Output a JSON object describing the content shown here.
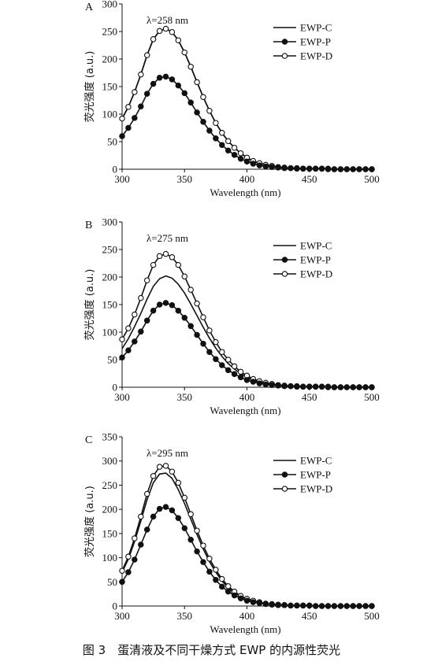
{
  "caption": "图 3　蛋清液及不同干燥方式 EWP 的内源性荧光",
  "chart_data": [
    {
      "type": "line",
      "panel_label": "A",
      "annotation": "λ=258 nm",
      "xlabel": "Wavelength (nm)",
      "ylabel": "荧光强度 (a.u.)",
      "xlim": [
        300,
        500
      ],
      "ylim": [
        0,
        300
      ],
      "xticks": [
        300,
        350,
        400,
        450,
        500
      ],
      "yticks": [
        0,
        50,
        100,
        150,
        200,
        250,
        300
      ],
      "grid": false,
      "legend_position": "top-right",
      "x": [
        300,
        305,
        310,
        315,
        320,
        325,
        330,
        335,
        340,
        345,
        350,
        355,
        360,
        365,
        370,
        375,
        380,
        385,
        390,
        395,
        400,
        405,
        410,
        415,
        420,
        425,
        430,
        435,
        440,
        445,
        450,
        455,
        460,
        465,
        470,
        475,
        480,
        485,
        490,
        495,
        500
      ],
      "series": [
        {
          "name": "EWP-C",
          "marker": "none",
          "values": [
            92,
            113,
            140,
            172,
            207,
            236,
            251,
            255,
            249,
            234,
            212,
            186,
            158,
            131,
            106,
            84,
            66,
            51,
            39,
            29,
            21,
            15,
            11,
            8,
            6,
            4,
            3,
            2,
            2,
            1,
            1,
            1,
            1,
            1,
            0,
            0,
            0,
            0,
            0,
            0,
            0
          ]
        },
        {
          "name": "EWP-P",
          "marker": "filled-circle",
          "values": [
            60,
            75,
            93,
            114,
            137,
            155,
            166,
            168,
            163,
            152,
            138,
            121,
            103,
            86,
            70,
            56,
            44,
            34,
            26,
            19,
            14,
            10,
            7,
            5,
            4,
            3,
            2,
            2,
            1,
            1,
            1,
            1,
            1,
            0,
            0,
            0,
            0,
            0,
            0,
            0,
            0
          ]
        },
        {
          "name": "EWP-D",
          "marker": "open-circle",
          "values": [
            92,
            113,
            140,
            172,
            207,
            236,
            251,
            255,
            249,
            234,
            212,
            186,
            158,
            131,
            106,
            84,
            66,
            51,
            39,
            29,
            21,
            15,
            11,
            8,
            6,
            4,
            3,
            2,
            2,
            1,
            1,
            1,
            1,
            1,
            0,
            0,
            0,
            0,
            0,
            0,
            0
          ]
        }
      ]
    },
    {
      "type": "line",
      "panel_label": "B",
      "annotation": "λ=275 nm",
      "xlabel": "Wavelength (nm)",
      "ylabel": "荧光强度 (a.u.)",
      "xlim": [
        300,
        500
      ],
      "ylim": [
        0,
        300
      ],
      "xticks": [
        300,
        350,
        400,
        450,
        500
      ],
      "yticks": [
        0,
        50,
        100,
        150,
        200,
        250,
        300
      ],
      "grid": false,
      "legend_position": "top-right",
      "x": [
        300,
        305,
        310,
        315,
        320,
        325,
        330,
        335,
        340,
        345,
        350,
        355,
        360,
        365,
        370,
        375,
        380,
        385,
        390,
        395,
        400,
        405,
        410,
        415,
        420,
        425,
        430,
        435,
        440,
        445,
        450,
        455,
        460,
        465,
        470,
        475,
        480,
        485,
        490,
        495,
        500
      ],
      "series": [
        {
          "name": "EWP-C",
          "marker": "none",
          "values": [
            70,
            88,
            110,
            134,
            160,
            183,
            197,
            202,
            198,
            187,
            171,
            151,
            130,
            109,
            89,
            71,
            56,
            43,
            33,
            25,
            18,
            13,
            9,
            7,
            5,
            4,
            3,
            2,
            2,
            1,
            1,
            1,
            1,
            1,
            0,
            0,
            0,
            0,
            0,
            0,
            0
          ]
        },
        {
          "name": "EWP-P",
          "marker": "filled-circle",
          "values": [
            54,
            67,
            83,
            101,
            121,
            139,
            150,
            153,
            149,
            139,
            126,
            111,
            95,
            79,
            64,
            51,
            40,
            31,
            24,
            18,
            13,
            10,
            7,
            5,
            4,
            3,
            2,
            2,
            1,
            1,
            1,
            1,
            1,
            0,
            0,
            0,
            0,
            0,
            0,
            0,
            0
          ]
        },
        {
          "name": "EWP-D",
          "marker": "open-circle",
          "values": [
            87,
            107,
            132,
            162,
            194,
            222,
            238,
            242,
            236,
            222,
            201,
            177,
            152,
            127,
            103,
            82,
            64,
            50,
            38,
            28,
            21,
            15,
            11,
            8,
            6,
            4,
            3,
            2,
            2,
            1,
            1,
            1,
            1,
            1,
            0,
            0,
            0,
            0,
            0,
            0,
            0
          ]
        }
      ]
    },
    {
      "type": "line",
      "panel_label": "C",
      "annotation": "λ=295 nm",
      "xlabel": "Wavelength (nm)",
      "ylabel": "荧光强度 (a.u.)",
      "xlim": [
        300,
        500
      ],
      "ylim": [
        0,
        350
      ],
      "xticks": [
        300,
        350,
        400,
        450,
        500
      ],
      "yticks": [
        0,
        50,
        100,
        150,
        200,
        250,
        300,
        350
      ],
      "grid": false,
      "legend_position": "top-right",
      "x": [
        300,
        305,
        310,
        315,
        320,
        325,
        330,
        335,
        340,
        345,
        350,
        355,
        360,
        365,
        370,
        375,
        380,
        385,
        390,
        395,
        400,
        405,
        410,
        415,
        420,
        425,
        430,
        435,
        440,
        445,
        450,
        455,
        460,
        465,
        470,
        475,
        480,
        485,
        490,
        495,
        500
      ],
      "series": [
        {
          "name": "EWP-C",
          "marker": "none",
          "values": [
            70,
            97,
            133,
            176,
            220,
            255,
            273,
            275,
            264,
            241,
            212,
            180,
            148,
            118,
            92,
            70,
            52,
            38,
            28,
            20,
            14,
            10,
            7,
            5,
            3,
            2,
            2,
            1,
            1,
            1,
            1,
            0,
            0,
            0,
            0,
            0,
            0,
            0,
            0,
            0,
            0
          ]
        },
        {
          "name": "EWP-P",
          "marker": "filled-circle",
          "values": [
            50,
            70,
            96,
            127,
            158,
            185,
            201,
            205,
            198,
            182,
            161,
            137,
            113,
            91,
            71,
            54,
            40,
            30,
            22,
            16,
            11,
            8,
            6,
            4,
            3,
            2,
            2,
            1,
            1,
            1,
            1,
            0,
            0,
            0,
            0,
            0,
            0,
            0,
            0,
            0,
            0
          ]
        },
        {
          "name": "EWP-D",
          "marker": "open-circle",
          "values": [
            73,
            102,
            140,
            185,
            232,
            269,
            288,
            290,
            278,
            255,
            224,
            190,
            156,
            125,
            98,
            75,
            56,
            41,
            30,
            21,
            15,
            11,
            8,
            5,
            4,
            3,
            2,
            1,
            1,
            1,
            1,
            0,
            0,
            0,
            0,
            0,
            0,
            0,
            0,
            0,
            0
          ]
        }
      ]
    }
  ]
}
